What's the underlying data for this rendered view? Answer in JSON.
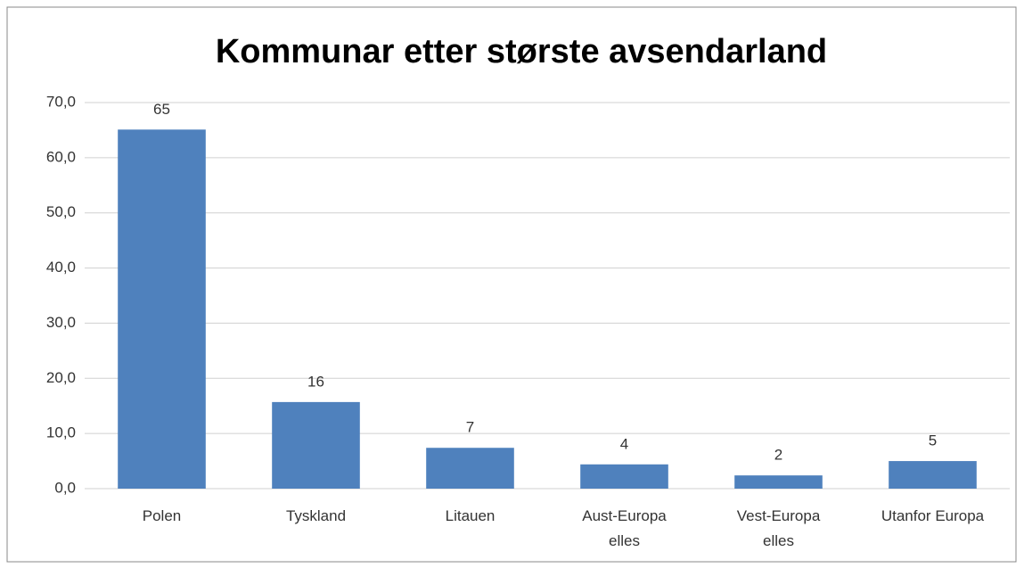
{
  "chart_data": {
    "type": "bar",
    "title": "Kommunar etter største avsendarland",
    "categories": [
      "Polen",
      "Tyskland",
      "Litauen",
      "Aust-Europa\nelles",
      "Vest-Europa\nelles",
      "Utanfor Europa"
    ],
    "values": [
      65.1,
      15.7,
      7.4,
      4.4,
      2.4,
      5.0
    ],
    "value_labels": [
      "65",
      "16",
      "7",
      "4",
      "2",
      "5"
    ],
    "color": "#4f81bd",
    "ylim": [
      0,
      70
    ],
    "yticks": [
      {
        "value": 0,
        "label": "0,0"
      },
      {
        "value": 10,
        "label": "10,0"
      },
      {
        "value": 20,
        "label": "20,0"
      },
      {
        "value": 30,
        "label": "30,0"
      },
      {
        "value": 40,
        "label": "40,0"
      },
      {
        "value": 50,
        "label": "50,0"
      },
      {
        "value": 60,
        "label": "60,0"
      },
      {
        "value": 70,
        "label": "70,0"
      }
    ],
    "grid": true
  }
}
